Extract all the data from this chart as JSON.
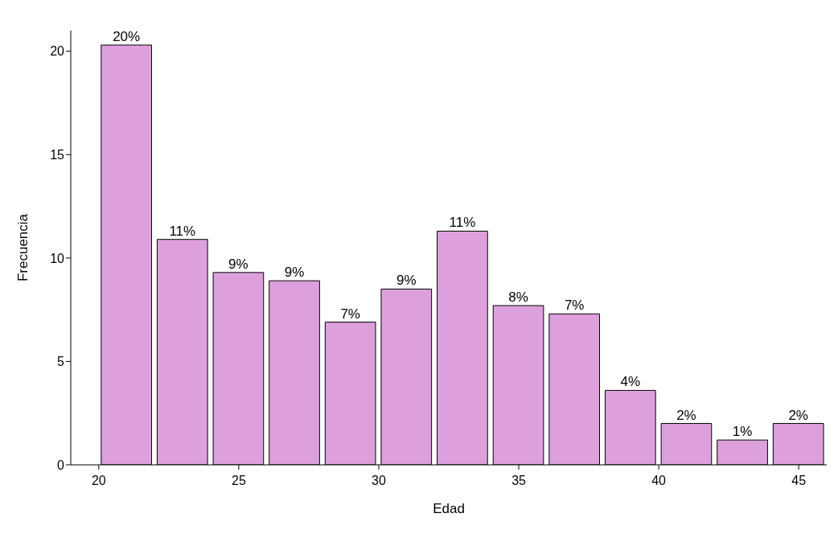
{
  "chart_data": {
    "type": "histogram",
    "xlabel": "Edad",
    "ylabel": "Frecuencia",
    "bins": [
      20,
      22,
      24,
      26,
      28,
      30,
      32,
      34,
      36,
      38,
      40,
      42,
      44,
      46
    ],
    "values": [
      20.3,
      10.9,
      9.3,
      8.9,
      6.9,
      8.5,
      11.3,
      7.7,
      7.3,
      3.6,
      2.0,
      1.2,
      2.0
    ],
    "value_labels": [
      "20%",
      "11%",
      "9%",
      "9%",
      "7%",
      "9%",
      "11%",
      "8%",
      "7%",
      "4%",
      "2%",
      "1%",
      "2%"
    ],
    "color": "#dda0dd",
    "xlim": [
      19,
      46
    ],
    "xticks": [
      20,
      25,
      30,
      35,
      40,
      45
    ],
    "ylim": [
      0,
      21
    ],
    "yticks": [
      0,
      5,
      10,
      15,
      20
    ]
  }
}
